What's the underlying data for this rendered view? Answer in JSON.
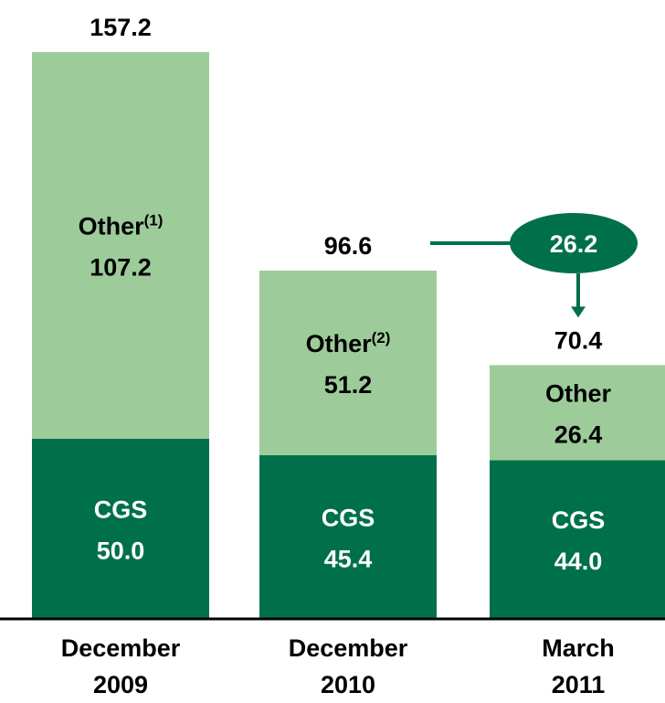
{
  "chart_data": {
    "type": "stacked-bar",
    "categories": [
      "December 2009",
      "December 2010",
      "March 2011"
    ],
    "series": [
      {
        "name": "CGS",
        "color": "#00704a",
        "label_color": "#ffffff",
        "values": [
          50.0,
          45.4,
          44.0
        ],
        "value_labels": [
          "50.0",
          "45.4",
          "44.0"
        ]
      },
      {
        "name": "Other",
        "color": "#9dcc9a",
        "label_color": "#000000",
        "values": [
          107.2,
          51.2,
          26.4
        ],
        "footnotes": [
          "(1)",
          "(2)",
          null
        ]
      }
    ],
    "totals": [
      157.2,
      96.6,
      70.4
    ],
    "annotation": {
      "value": 26.2,
      "color": "#00704a"
    }
  }
}
